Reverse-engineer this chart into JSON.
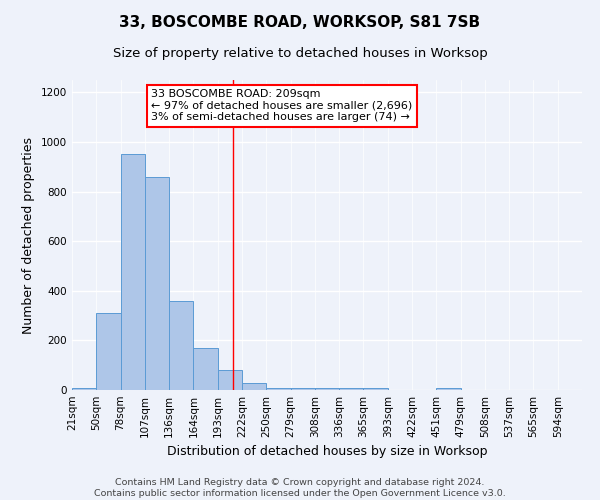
{
  "title": "33, BOSCOMBE ROAD, WORKSOP, S81 7SB",
  "subtitle": "Size of property relative to detached houses in Worksop",
  "xlabel": "Distribution of detached houses by size in Worksop",
  "ylabel": "Number of detached properties",
  "bin_labels": [
    "21sqm",
    "50sqm",
    "78sqm",
    "107sqm",
    "136sqm",
    "164sqm",
    "193sqm",
    "222sqm",
    "250sqm",
    "279sqm",
    "308sqm",
    "336sqm",
    "365sqm",
    "393sqm",
    "422sqm",
    "451sqm",
    "479sqm",
    "508sqm",
    "537sqm",
    "565sqm",
    "594sqm"
  ],
  "bar_heights": [
    10,
    310,
    950,
    860,
    360,
    170,
    80,
    30,
    10,
    10,
    10,
    10,
    8,
    0,
    0,
    10,
    0,
    0,
    0,
    0,
    0
  ],
  "bar_color": "#aec6e8",
  "bar_edge_color": "#5b9bd5",
  "background_color": "#eef2fa",
  "grid_color": "#ffffff",
  "property_label": "33 BOSCOMBE ROAD: 209sqm",
  "pct_smaller": "97% of detached houses are smaller (2,696)",
  "pct_larger": "3% of semi-detached houses are larger (74)",
  "vline_bin_index": 6.62,
  "ylim": [
    0,
    1250
  ],
  "yticks": [
    0,
    200,
    400,
    600,
    800,
    1000,
    1200
  ],
  "footer": "Contains HM Land Registry data © Crown copyright and database right 2024.\nContains public sector information licensed under the Open Government Licence v3.0.",
  "title_fontsize": 11,
  "subtitle_fontsize": 9.5,
  "axis_label_fontsize": 9,
  "tick_fontsize": 7.5,
  "footer_fontsize": 6.8,
  "ann_fontsize": 8
}
